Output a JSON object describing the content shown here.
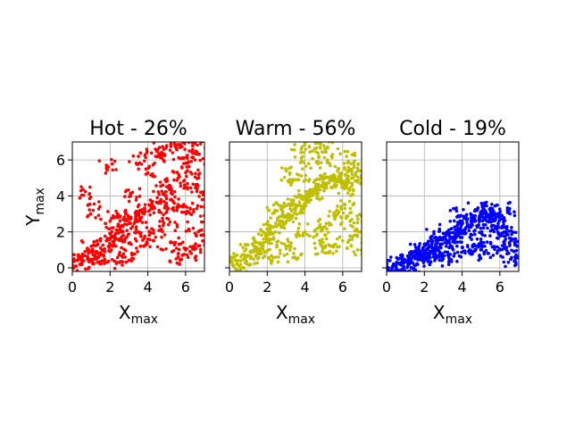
{
  "chart_data": [
    {
      "type": "scatter",
      "title": "Hot - 26%",
      "xlabel": {
        "main": "X",
        "sub": "max"
      },
      "ylabel": {
        "main": "Y",
        "sub": "max"
      },
      "xlim": [
        0,
        7
      ],
      "ylim": [
        -0.2,
        7
      ],
      "xticks": [
        "0",
        "2",
        "4",
        "6"
      ],
      "yticks": [
        "0",
        "2",
        "4",
        "6"
      ],
      "grid": true,
      "color": "#ff0000",
      "series": [
        {
          "x": [
            0.2,
            0.5,
            0.8,
            1.0,
            1.2,
            1.5,
            1.8,
            2.0,
            2.3,
            2.6,
            2.9,
            3.1,
            3.4,
            3.7,
            3.9,
            4.2,
            4.5,
            4.8,
            5.0,
            5.3,
            5.6,
            5.9,
            6.2,
            6.5,
            6.8,
            0.4,
            1.3,
            2.2,
            3.0,
            3.8,
            4.6,
            5.4,
            6.1,
            6.7,
            1.1,
            1.9,
            2.7,
            3.5,
            4.3,
            5.1,
            5.8,
            6.4,
            0.9,
            2.4,
            3.6,
            4.9,
            6.0,
            6.9,
            1.6,
            2.8,
            4.0,
            5.2,
            6.3,
            3.2,
            4.4,
            5.5,
            6.6,
            2.5,
            5.7,
            6.8
          ],
          "y": [
            0.1,
            0.3,
            0.5,
            1.2,
            0.7,
            1.1,
            1.5,
            2.6,
            1.9,
            2.0,
            2.4,
            4.0,
            2.9,
            3.1,
            5.5,
            3.4,
            3.9,
            4.6,
            6.8,
            4.1,
            5.0,
            5.8,
            6.5,
            6.0,
            6.9,
            0.2,
            0.9,
            1.3,
            2.8,
            3.0,
            3.2,
            3.6,
            4.4,
            5.0,
            3.2,
            5.6,
            1.8,
            6.2,
            2.1,
            2.4,
            3.1,
            2.2,
            4.1,
            2.8,
            1.2,
            6.3,
            1.0,
            1.5,
            0.4,
            0.6,
            1.6,
            1.4,
            0.8,
            2.3,
            6.6,
            0.5,
            3.3,
            0.3,
            6.8,
            4.2
          ]
        }
      ]
    },
    {
      "type": "scatter",
      "title": "Warm - 56%",
      "xlabel": {
        "main": "X",
        "sub": "max"
      },
      "xlim": [
        0,
        7
      ],
      "ylim": [
        -0.2,
        7
      ],
      "xticks": [
        "0",
        "2",
        "4",
        "6"
      ],
      "grid": true,
      "color": "#bfbf00",
      "series": [
        {
          "x": [
            0.2,
            0.4,
            0.6,
            0.9,
            1.1,
            1.3,
            1.6,
            1.8,
            2.0,
            2.2,
            2.5,
            2.7,
            2.9,
            3.1,
            3.3,
            3.5,
            3.7,
            3.9,
            4.1,
            4.3,
            4.5,
            4.7,
            4.9,
            5.1,
            5.3,
            5.5,
            5.7,
            5.9,
            6.1,
            6.3,
            6.5,
            6.7,
            6.9,
            1.5,
            2.4,
            3.0,
            3.6,
            4.0,
            4.4,
            4.8,
            5.2,
            5.6,
            6.0,
            6.4,
            6.8,
            2.1,
            3.2,
            4.6,
            5.0,
            5.8,
            6.6,
            3.4,
            4.2,
            5.4,
            6.2,
            2.6,
            3.8,
            4.9,
            6.1,
            6.9
          ],
          "y": [
            0.1,
            0.2,
            0.4,
            0.6,
            0.9,
            1.0,
            1.3,
            1.6,
            1.8,
            2.0,
            2.3,
            2.6,
            2.8,
            3.0,
            3.2,
            3.4,
            3.5,
            3.8,
            4.0,
            4.1,
            4.3,
            4.5,
            4.6,
            4.7,
            4.9,
            5.0,
            4.8,
            5.2,
            5.5,
            5.1,
            4.7,
            5.3,
            5.4,
            0.5,
            3.2,
            1.2,
            4.9,
            2.0,
            6.5,
            2.4,
            6.0,
            2.8,
            1.5,
            3.3,
            1.0,
            1.0,
            5.2,
            1.8,
            6.8,
            3.1,
            2.5,
            0.8,
            5.8,
            1.2,
            6.2,
            0.6,
            6.6,
            1.2,
            4.4,
            2.0
          ]
        }
      ]
    },
    {
      "type": "scatter",
      "title": "Cold - 19%",
      "xlabel": {
        "main": "X",
        "sub": "max"
      },
      "xlim": [
        0,
        7
      ],
      "ylim": [
        -0.2,
        7
      ],
      "xticks": [
        "0",
        "2",
        "4",
        "6"
      ],
      "grid": true,
      "color": "#0000ff",
      "series": [
        {
          "x": [
            0.1,
            0.3,
            0.5,
            0.7,
            0.9,
            1.1,
            1.3,
            1.5,
            1.7,
            1.9,
            2.1,
            2.3,
            2.5,
            2.7,
            2.9,
            3.1,
            3.3,
            3.5,
            3.7,
            3.9,
            4.1,
            4.3,
            4.5,
            4.7,
            4.9,
            5.1,
            5.3,
            5.5,
            5.7,
            5.9,
            6.1,
            6.3,
            6.5,
            6.7,
            1.2,
            2.0,
            2.8,
            3.6,
            4.4,
            5.2,
            6.0,
            6.6,
            1.6,
            2.4,
            3.2,
            4.0,
            4.8,
            5.6,
            6.4,
            3.0,
            4.6,
            5.0,
            5.8,
            6.2,
            2.6,
            3.8,
            5.4,
            6.8
          ],
          "y": [
            0.0,
            0.05,
            0.1,
            0.2,
            0.25,
            0.3,
            0.4,
            0.5,
            0.6,
            0.7,
            0.8,
            0.9,
            1.0,
            1.1,
            1.3,
            1.4,
            1.5,
            1.7,
            1.8,
            2.0,
            2.1,
            2.3,
            2.5,
            2.6,
            2.8,
            3.1,
            3.0,
            2.9,
            2.6,
            2.3,
            1.8,
            2.0,
            1.4,
            1.6,
            0.2,
            0.4,
            0.6,
            0.8,
            1.0,
            1.2,
            1.0,
            0.5,
            1.0,
            1.3,
            2.0,
            2.6,
            3.2,
            3.3,
            3.2,
            0.5,
            0.9,
            1.6,
            3.0,
            2.4,
            1.7,
            2.9,
            0.8,
            0.6
          ]
        }
      ]
    }
  ]
}
